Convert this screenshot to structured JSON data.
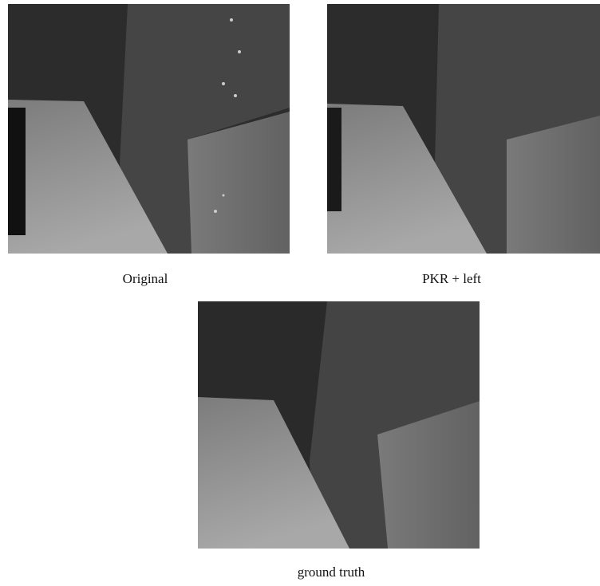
{
  "panels": [
    {
      "caption": "Original"
    },
    {
      "caption": "PKR + left"
    },
    {
      "caption": "ground truth"
    }
  ]
}
